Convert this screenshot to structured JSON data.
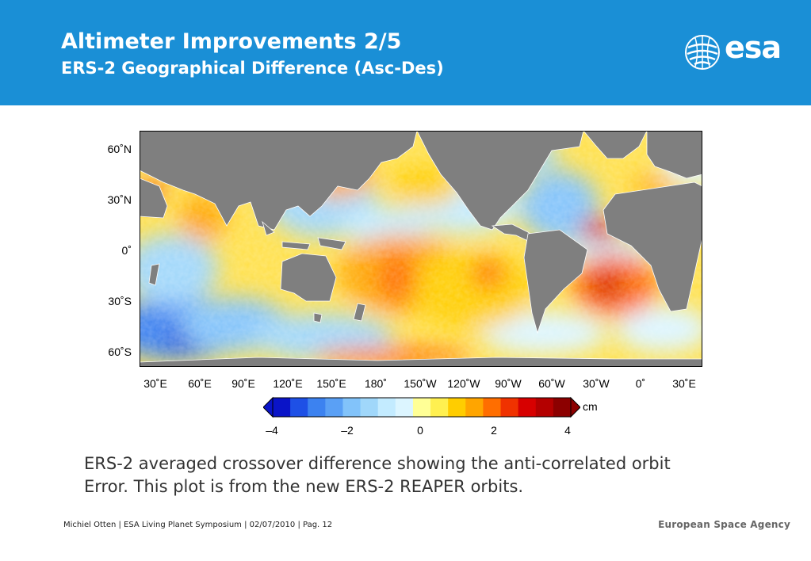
{
  "header": {
    "title": "Altimeter Improvements 2/5",
    "subtitle": "ERS-2 Geographical Difference (Asc-Des)",
    "logo_text": "esa",
    "background": "#1a8fd6"
  },
  "figure": {
    "y_ticks": [
      "60˚N",
      "30˚N",
      "0˚",
      "30˚S",
      "60˚S"
    ],
    "x_ticks": [
      "30˚E",
      "60˚E",
      "90˚E",
      "120˚E",
      "150˚E",
      "180˚",
      "150˚W",
      "120˚W",
      "90˚W",
      "60˚W",
      "30˚W",
      "0˚",
      "30˚E"
    ],
    "land_color": "#7f7f7f",
    "colorbar": {
      "unit": "cm",
      "ticks": [
        "–4",
        "–2",
        "0",
        "2",
        "4"
      ],
      "colors": [
        "#0a14c8",
        "#1e50e6",
        "#3c82f0",
        "#5aa0f5",
        "#82c3fa",
        "#a0d7fa",
        "#c3ebff",
        "#dcf5ff",
        "#ffff96",
        "#fff050",
        "#ffcd00",
        "#ffa500",
        "#ff6e00",
        "#f03200",
        "#d70000",
        "#b40000",
        "#8c0000"
      ]
    }
  },
  "caption": {
    "line1": "ERS-2 averaged crossover difference showing the anti-correlated orbit",
    "line2": "Error. This plot is from the new ERS-2 REAPER orbits."
  },
  "footer": {
    "text": "Michiel Otten | ESA Living Planet Symposium | 02/07/2010 | Pag. 12",
    "agency": "European Space Agency"
  }
}
